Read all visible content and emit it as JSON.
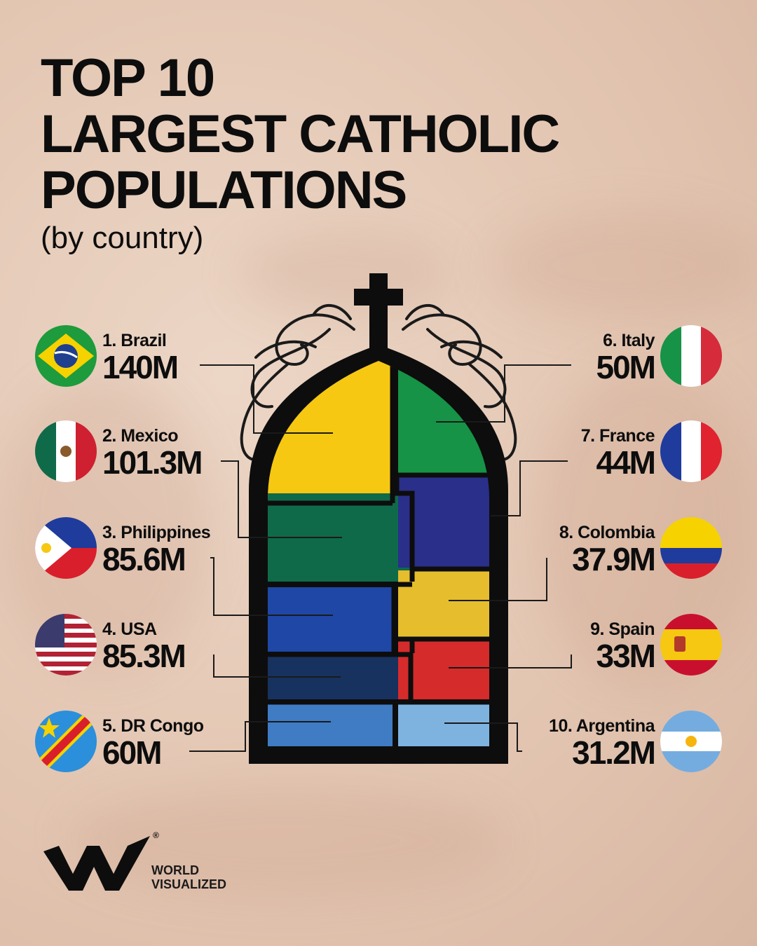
{
  "title_lines": [
    "TOP 10",
    "LARGEST CATHOLIC",
    "POPULATIONS"
  ],
  "subtitle": "(by country)",
  "brand": {
    "line1": "WORLD",
    "line2": "VISUALIZED",
    "mark": "®"
  },
  "chart_data": {
    "type": "treemap",
    "unit": "M",
    "categories": [
      "Brazil",
      "Mexico",
      "Philippines",
      "USA",
      "DR Congo",
      "Italy",
      "France",
      "Colombia",
      "Spain",
      "Argentina"
    ],
    "values": [
      140,
      101.3,
      85.6,
      85.3,
      60,
      50,
      44,
      37.9,
      33,
      31.2
    ],
    "entries": [
      {
        "rank_label": "1. Brazil",
        "value_label": "140M",
        "value": 140,
        "color": "#f6c812",
        "flag": "brazil-flag-icon"
      },
      {
        "rank_label": "2. Mexico",
        "value_label": "101.3M",
        "value": 101.3,
        "color": "#0f6a4a",
        "flag": "mexico-flag-icon"
      },
      {
        "rank_label": "3. Philippines",
        "value_label": "85.6M",
        "value": 85.6,
        "color": "#1f47a6",
        "flag": "philippines-flag-icon"
      },
      {
        "rank_label": "4. USA",
        "value_label": "85.3M",
        "value": 85.3,
        "color": "#17325e",
        "flag": "usa-flag-icon"
      },
      {
        "rank_label": "5. DR Congo",
        "value_label": "60M",
        "value": 60,
        "color": "#3f7cc4",
        "flag": "dr-congo-flag-icon"
      },
      {
        "rank_label": "6. Italy",
        "value_label": "50M",
        "value": 50,
        "color": "#169346",
        "flag": "italy-flag-icon"
      },
      {
        "rank_label": "7. France",
        "value_label": "44M",
        "value": 44,
        "color": "#2a2f8a",
        "flag": "france-flag-icon"
      },
      {
        "rank_label": "8. Colombia",
        "value_label": "37.9M",
        "value": 37.9,
        "color": "#e6bd2c",
        "flag": "colombia-flag-icon"
      },
      {
        "rank_label": "9. Spain",
        "value_label": "33M",
        "value": 33,
        "color": "#d52b2b",
        "flag": "spain-flag-icon"
      },
      {
        "rank_label": "10. Argentina",
        "value_label": "31.2M",
        "value": 31.2,
        "color": "#7eb3e0",
        "flag": "argentina-flag-icon"
      }
    ],
    "shape": "gothic-church-window",
    "legend": "none"
  }
}
